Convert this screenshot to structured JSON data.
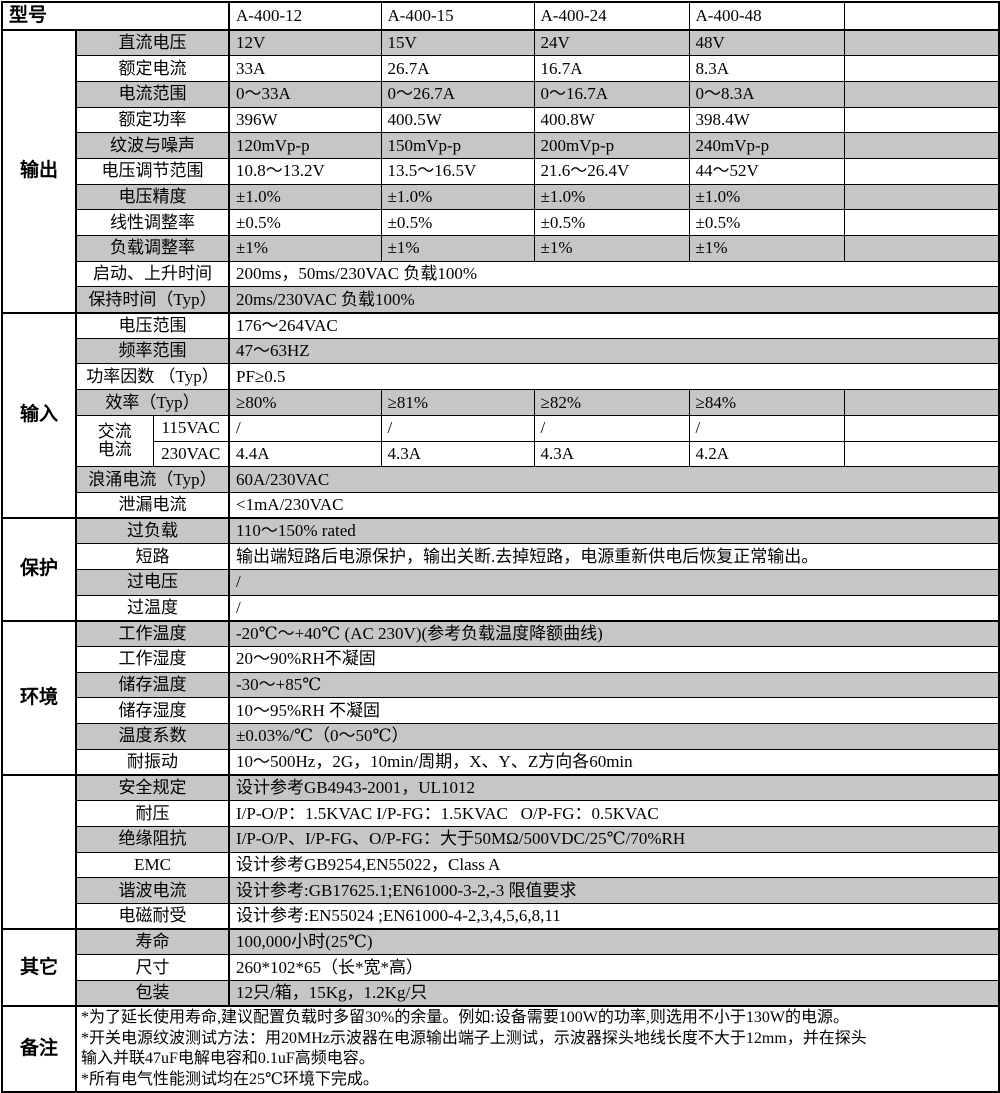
{
  "doc_type": "power-supply-spec-sheet",
  "colors": {
    "row_shade": "#c6c6c6",
    "border": "#000000",
    "background": "#ffffff"
  },
  "header": {
    "corner_label": "型号",
    "models": [
      "A-400-12",
      "A-400-15",
      "A-400-24",
      "A-400-48"
    ]
  },
  "sections": [
    {
      "label": "输出",
      "rows": [
        {
          "label": "直流电压",
          "values": [
            "12V",
            "15V",
            "24V",
            "48V"
          ],
          "shaded": true
        },
        {
          "label": "额定电流",
          "values": [
            "33A",
            "26.7A",
            "16.7A",
            "8.3A"
          ],
          "shaded": false
        },
        {
          "label": "电流范围",
          "values": [
            "0～33A",
            "0～26.7A",
            "0～16.7A",
            "0～8.3A"
          ],
          "shaded": true
        },
        {
          "label": "额定功率",
          "values": [
            "396W",
            "400.5W",
            "400.8W",
            "398.4W"
          ],
          "shaded": false
        },
        {
          "label": "纹波与噪声",
          "values": [
            "120mVp-p",
            "150mVp-p",
            "200mVp-p",
            "240mVp-p"
          ],
          "shaded": true
        },
        {
          "label": "电压调节范围",
          "values": [
            "10.8～13.2V",
            "13.5～16.5V",
            "21.6～26.4V",
            "44～52V"
          ],
          "shaded": false
        },
        {
          "label": "电压精度",
          "values": [
            "±1.0%",
            "±1.0%",
            "±1.0%",
            "±1.0%"
          ],
          "shaded": true
        },
        {
          "label": "线性调整率",
          "values": [
            "±0.5%",
            "±0.5%",
            "±0.5%",
            "±0.5%"
          ],
          "shaded": false
        },
        {
          "label": "负载调整率",
          "values": [
            "±1%",
            "±1%",
            "±1%",
            "±1%"
          ],
          "shaded": true
        },
        {
          "label": "启动、上升时间",
          "span": "200ms，50ms/230VAC 负载100%",
          "shaded": false
        },
        {
          "label": "保持时间（Typ）",
          "span": "20ms/230VAC 负载100%",
          "shaded": true
        }
      ]
    },
    {
      "label": "输入",
      "rows": [
        {
          "label": "电压范围",
          "span": "176～264VAC",
          "shaded": false
        },
        {
          "label": "频率范围",
          "span": "47～63HZ",
          "shaded": true
        },
        {
          "label": "功率因数 （Typ）",
          "span": "PF≥0.5",
          "shaded": false
        },
        {
          "label": "效率（Typ）",
          "values": [
            "≥80%",
            "≥81%",
            "≥82%",
            "≥84%"
          ],
          "shaded": true
        },
        {
          "group_lines": [
            "交流",
            "电流"
          ],
          "sublabel": "115VAC",
          "values": [
            "/",
            "/",
            "/",
            "/"
          ],
          "shaded": false
        },
        {
          "sublabel": "230VAC",
          "values": [
            "4.4A",
            "4.3A",
            "4.3A",
            "4.2A"
          ],
          "shaded": false
        },
        {
          "label": "浪涌电流（Typ）",
          "span": "60A/230VAC",
          "shaded": true
        },
        {
          "label": "泄漏电流",
          "span": "<1mA/230VAC",
          "shaded": false
        }
      ]
    },
    {
      "label": "保护",
      "rows": [
        {
          "label": "过负载",
          "span": "110～150% rated",
          "shaded": true
        },
        {
          "label": "短路",
          "span": "输出端短路后电源保护，输出关断.去掉短路，电源重新供电后恢复正常输出。",
          "shaded": false
        },
        {
          "label": "过电压",
          "span": "/",
          "shaded": true
        },
        {
          "label": "过温度",
          "span": "/",
          "shaded": false
        }
      ]
    },
    {
      "label": "环境",
      "rows": [
        {
          "label": "工作温度",
          "span": "-20℃～+40℃ (AC 230V)(参考负载温度降额曲线)",
          "shaded": true
        },
        {
          "label": "工作湿度",
          "span": "20～90%RH不凝固",
          "shaded": false
        },
        {
          "label": "储存温度",
          "span": "-30～+85℃",
          "shaded": true
        },
        {
          "label": "储存湿度",
          "span": "10～95%RH 不凝固",
          "shaded": false
        },
        {
          "label": "温度系数",
          "span": "±0.03%/℃（0～50℃）",
          "shaded": true
        },
        {
          "label": "耐振动",
          "span": "10～500Hz，2G，10min/周期，X、Y、Z方向各60min",
          "shaded": false
        }
      ]
    },
    {
      "label": "",
      "rows": [
        {
          "label": "安全规定",
          "span": "设计参考GB4943-2001，UL1012",
          "shaded": true
        },
        {
          "label": "耐压",
          "span": "I/P-O/P：1.5KVAC I/P-FG：1.5KVAC   O/P-FG：0.5KVAC",
          "shaded": false
        },
        {
          "label": "绝缘阻抗",
          "span": "I/P-O/P、I/P-FG、O/P-FG：大于50MΩ/500VDC/25℃/70%RH",
          "shaded": true
        },
        {
          "label": "EMC",
          "span": "设计参考GB9254,EN55022，Class A",
          "shaded": false
        },
        {
          "label": "谐波电流",
          "span": "设计参考:GB17625.1;EN61000-3-2,-3 限值要求",
          "shaded": true
        },
        {
          "label": "电磁耐受",
          "span": "设计参考:EN55024 ;EN61000-4-2,3,4,5,6,8,11",
          "shaded": false
        }
      ]
    },
    {
      "label": "其它",
      "rows": [
        {
          "label": "寿命",
          "span": "100,000小时(25℃)",
          "shaded": true
        },
        {
          "label": "尺寸",
          "span": "260*102*65（长*宽*高）",
          "shaded": false
        },
        {
          "label": "包装",
          "span": "12只/箱，15Kg，1.2Kg/只",
          "shaded": true
        }
      ]
    }
  ],
  "notes": {
    "label": "备注",
    "lines": [
      "*为了延长使用寿命,建议配置负载时多留30%的余量。例如:设备需要100W的功率,则选用不小于130W的电源。",
      "*开关电源纹波测试方法：用20MHz示波器在电源输出端子上测试，示波器探头地线长度不大于12mm，并在探头",
      "输入并联47uF电解电容和0.1uF高频电容。",
      "*所有电气性能测试均在25℃环境下完成。"
    ]
  }
}
